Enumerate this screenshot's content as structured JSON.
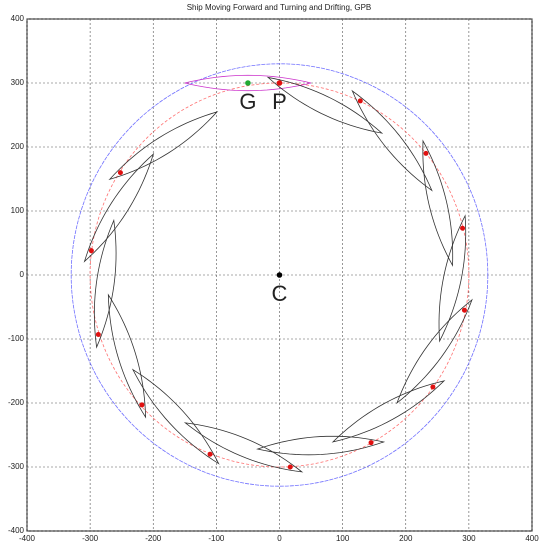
{
  "chart_data": {
    "type": "scatter",
    "title": "Ship Moving Forward and Turning and Drifting, GPB",
    "x": [
      0,
      128,
      232,
      290,
      293,
      243,
      145,
      17,
      -110,
      -218,
      -287,
      -298,
      -252
    ],
    "values": [
      300,
      272,
      190,
      73,
      -55,
      -175,
      -262,
      -300,
      -280,
      -203,
      -93,
      38,
      160
    ],
    "color": "#e01010",
    "annotations": [
      {
        "text": "G",
        "x": -50,
        "y": 300,
        "color": "#22aa33"
      },
      {
        "text": "P",
        "x": 0,
        "y": 300,
        "color": "#e01010"
      },
      {
        "text": "C",
        "x": 0,
        "y": 0,
        "color": "#000000"
      }
    ],
    "circles": [
      {
        "r": 300,
        "color": "#ff7070"
      },
      {
        "r": 330,
        "color": "#7070ff"
      }
    ],
    "xlim": [
      -400,
      400
    ],
    "ylim": [
      -400,
      400
    ],
    "xticks": [
      -400,
      -300,
      -200,
      -100,
      0,
      100,
      200,
      300,
      400
    ],
    "yticks": [
      -400,
      -300,
      -200,
      -100,
      0,
      100,
      200,
      300,
      400
    ],
    "grid": true
  }
}
